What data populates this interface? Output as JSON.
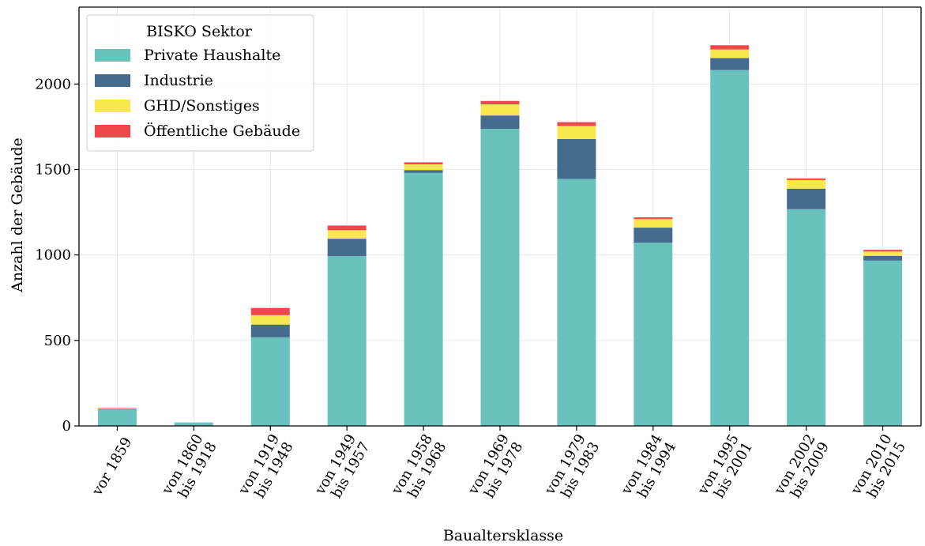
{
  "chart_data": {
    "type": "bar",
    "stacked": true,
    "xlabel": "Baualtersklasse",
    "ylabel": "Anzahl der Gebäude",
    "ylim": [
      0,
      2450
    ],
    "yticks": [
      "0",
      "500",
      "1000",
      "1500",
      "2000"
    ],
    "grid": true,
    "categories": [
      "vor 1859",
      "von 1860\nbis 1918",
      "von 1919\nbis 1948",
      "von 1949\nbis 1957",
      "von 1958\nbis 1968",
      "von 1969\nbis 1978",
      "von 1979\nbis 1983",
      "von 1984\nbis 1994",
      "von 1995\nbis 2001",
      "von 2002\nbis 2009",
      "von 2010\nbis 2015"
    ],
    "series": [
      {
        "name": "Private Haushalte",
        "color": "#69c2bd",
        "values": [
          95,
          20,
          518,
          993,
          1480,
          1738,
          1445,
          1072,
          2082,
          1268,
          967
        ]
      },
      {
        "name": "Industrie",
        "color": "#456c8f",
        "values": [
          2,
          0,
          75,
          102,
          17,
          78,
          233,
          88,
          70,
          120,
          28
        ]
      },
      {
        "name": "GHD/Sonstiges",
        "color": "#f9e84d",
        "values": [
          5,
          0,
          55,
          50,
          33,
          65,
          77,
          50,
          50,
          50,
          25
        ]
      },
      {
        "name": "Öffentliche Gebäude",
        "color": "#ef474c",
        "values": [
          3,
          0,
          42,
          27,
          12,
          20,
          22,
          10,
          25,
          10,
          10
        ]
      }
    ],
    "legend": {
      "title": "BISKO Sektor",
      "position": "top-left"
    }
  }
}
